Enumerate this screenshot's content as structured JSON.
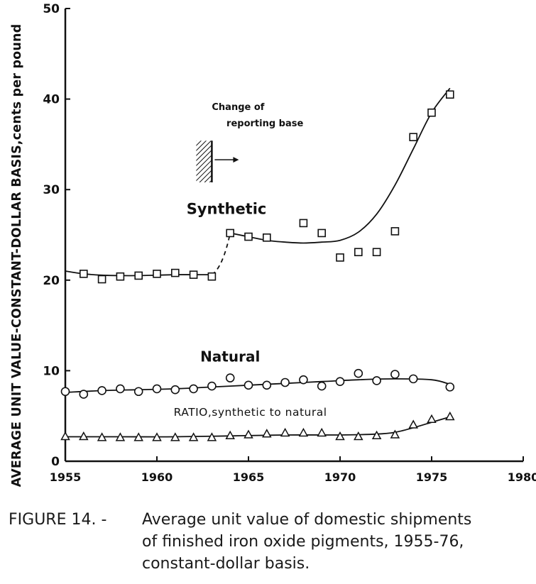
{
  "chart_data": {
    "type": "scatter",
    "title": "",
    "xlabel": "",
    "ylabel": "AVERAGE UNIT VALUE-CONSTANT-DOLLAR BASIS,cents per pound",
    "xlim": [
      1955,
      1980
    ],
    "ylim": [
      0,
      50
    ],
    "x_ticks": [
      1955,
      1960,
      1965,
      1970,
      1975,
      1980
    ],
    "y_ticks": [
      0,
      10,
      20,
      30,
      40,
      50
    ],
    "grid": false,
    "series": [
      {
        "name": "Synthetic",
        "marker": "square",
        "x": [
          1956,
          1957,
          1958,
          1959,
          1960,
          1961,
          1962,
          1963,
          1964,
          1965,
          1966,
          1968,
          1969,
          1970,
          1971,
          1972,
          1973,
          1974,
          1975,
          1976
        ],
        "y": [
          20.7,
          20.1,
          20.4,
          20.5,
          20.7,
          20.8,
          20.6,
          20.4,
          25.2,
          24.8,
          24.7,
          26.3,
          25.2,
          22.5,
          23.1,
          23.1,
          25.4,
          35.8,
          38.5,
          40.5
        ],
        "fit_x": [
          1955,
          1956,
          1957,
          1958,
          1959,
          1960,
          1961,
          1962,
          1963
        ],
        "fit_y": [
          21.0,
          20.7,
          20.55,
          20.5,
          20.5,
          20.55,
          20.6,
          20.6,
          20.6
        ],
        "fit2_x": [
          1964,
          1965,
          1966,
          1967,
          1968,
          1969,
          1970,
          1971,
          1972,
          1973,
          1974,
          1975,
          1976
        ],
        "fit2_y": [
          25.2,
          24.8,
          24.4,
          24.2,
          24.1,
          24.2,
          24.4,
          25.3,
          27.3,
          30.5,
          34.5,
          38.5,
          41.2
        ],
        "gap_x": [
          1963,
          1964
        ],
        "gap_y": [
          20.6,
          25.2
        ]
      },
      {
        "name": "Natural",
        "marker": "circle",
        "x": [
          1955,
          1956,
          1957,
          1958,
          1959,
          1960,
          1961,
          1962,
          1963,
          1964,
          1965,
          1966,
          1967,
          1968,
          1969,
          1970,
          1971,
          1972,
          1973,
          1974,
          1976
        ],
        "y": [
          7.7,
          7.4,
          7.8,
          8.0,
          7.7,
          8.0,
          7.9,
          8.0,
          8.3,
          9.2,
          8.4,
          8.4,
          8.7,
          9.0,
          8.3,
          8.8,
          9.7,
          8.9,
          9.6,
          9.1,
          8.2
        ],
        "fit_x": [
          1955,
          1957,
          1959,
          1961,
          1963,
          1965,
          1967,
          1969,
          1971,
          1973,
          1975,
          1976
        ],
        "fit_y": [
          7.6,
          7.8,
          7.9,
          8.0,
          8.2,
          8.4,
          8.6,
          8.8,
          9.0,
          9.1,
          9.0,
          8.5
        ]
      },
      {
        "name": "RATIO,synthetic to natural",
        "marker": "triangle",
        "x": [
          1955,
          1956,
          1957,
          1958,
          1959,
          1960,
          1961,
          1962,
          1963,
          1964,
          1965,
          1966,
          1967,
          1968,
          1969,
          1970,
          1971,
          1972,
          1973,
          1974,
          1975,
          1976
        ],
        "y": [
          2.7,
          2.7,
          2.6,
          2.6,
          2.6,
          2.6,
          2.6,
          2.6,
          2.6,
          2.8,
          2.9,
          3.0,
          3.1,
          3.1,
          3.1,
          2.7,
          2.7,
          2.8,
          2.9,
          4.0,
          4.6,
          4.9
        ],
        "fit_x": [
          1955,
          1958,
          1961,
          1964,
          1967,
          1970,
          1972,
          1973,
          1974,
          1975,
          1976
        ],
        "fit_y": [
          2.7,
          2.7,
          2.7,
          2.8,
          2.9,
          2.9,
          3.0,
          3.2,
          3.7,
          4.3,
          4.9
        ]
      }
    ],
    "annotations": {
      "change_line1": "Change of",
      "change_line2": "reporting base",
      "change_year": 1963
    },
    "labels": {
      "synthetic": "Synthetic",
      "natural": "Natural",
      "ratio": "RATIO,synthetic to natural"
    }
  },
  "caption": {
    "figure": "FIGURE 14. -",
    "line1": "Average unit value of domestic shipments",
    "line2": "of finished iron oxide pigments, 1955-76,",
    "line3": "constant-dollar basis."
  }
}
